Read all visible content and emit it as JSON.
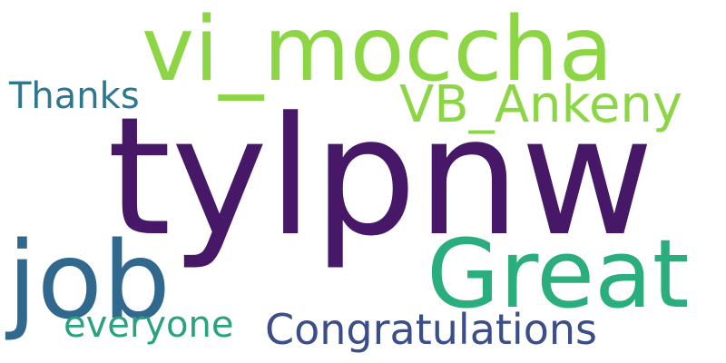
{
  "words": {
    "tylpnw": {
      "text": "tylpnw",
      "color": "#471768"
    },
    "vi_moccha": {
      "text": "vi_moccha",
      "color": "#8cd646"
    },
    "vb_ankeny": {
      "text": "VB_Ankeny",
      "color": "#8cd646"
    },
    "thanks": {
      "text": "Thanks",
      "color": "#2e7790"
    },
    "job": {
      "text": "job",
      "color": "#31688e"
    },
    "great": {
      "text": "Great",
      "color": "#2aae7e"
    },
    "everyone": {
      "text": "everyone",
      "color": "#2aa27d"
    },
    "congratulations": {
      "text": "Congratulations",
      "color": "#3b4e8a"
    }
  }
}
